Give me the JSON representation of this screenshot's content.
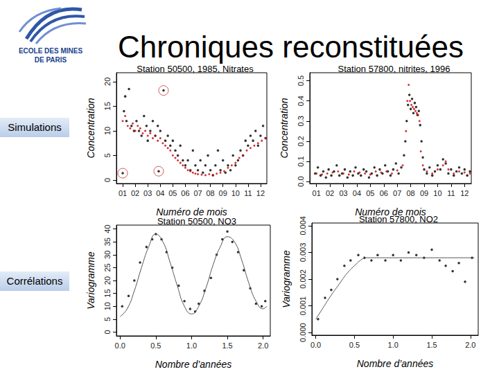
{
  "slide": {
    "logo": [
      "ECOLE DES MINES",
      "DE PARIS"
    ],
    "title": "Chroniques reconstituées",
    "row_labels": [
      "Simulations",
      "Corrélations"
    ]
  },
  "chart_data": [
    {
      "type": "scatter",
      "title": "Station 50500, 1985, Nitrates",
      "x_label": "Numéro de mois",
      "y_label": "Concentration",
      "xlim": [
        0.5,
        12.5
      ],
      "xticks": [
        {
          "value": 1,
          "label": "01"
        },
        {
          "value": 2,
          "label": "02"
        },
        {
          "value": 3,
          "label": "03"
        },
        {
          "value": 4,
          "label": "04"
        },
        {
          "value": 5,
          "label": "05"
        },
        {
          "value": 6,
          "label": "06"
        },
        {
          "value": 7,
          "label": "07"
        },
        {
          "value": 8,
          "label": "08"
        },
        {
          "value": 9,
          "label": "09"
        },
        {
          "value": 10,
          "label": "10"
        },
        {
          "value": 11,
          "label": "11"
        },
        {
          "value": 12,
          "label": "12"
        }
      ],
      "ylim": [
        -0.7,
        21.8
      ],
      "yticks": [
        0,
        5,
        10,
        15,
        20
      ],
      "grid": false,
      "series": [
        {
          "color": "#000000",
          "marker": "circle",
          "x": [
            1.0,
            1.1,
            1.2,
            1.3,
            1.5,
            1.7,
            1.9,
            2.1,
            2.3,
            2.5,
            2.7,
            2.9,
            3.0,
            3.2,
            3.4,
            3.6,
            3.8,
            3.87,
            4.0,
            4.26,
            4.4,
            4.6,
            4.8,
            5.0,
            5.2,
            5.4,
            5.6,
            5.8,
            6.0,
            6.2,
            6.4,
            6.6,
            6.8,
            7.0,
            7.2,
            7.4,
            7.6,
            7.8,
            8.0,
            8.2,
            8.4,
            8.6,
            8.8,
            9.0,
            9.2,
            9.4,
            9.6,
            9.8,
            10.0,
            10.2,
            10.4,
            10.6,
            10.8,
            11.0,
            11.2,
            11.4,
            11.6,
            11.8,
            12.0,
            12.2,
            12.4
          ],
          "values": [
            1.4,
            14,
            17,
            12,
            18.5,
            11,
            10,
            12,
            10,
            9,
            13,
            11,
            8,
            10,
            12,
            9,
            11,
            1.8,
            10,
            18.2,
            8,
            9,
            7,
            8,
            6,
            5,
            7,
            4,
            3,
            4,
            2,
            6,
            3,
            2,
            4,
            1.5,
            3,
            5,
            2,
            1,
            3,
            6,
            2,
            4,
            1.5,
            3,
            2,
            5,
            3,
            4,
            6,
            5,
            8,
            7,
            9,
            8,
            10,
            7,
            9,
            11,
            8.5
          ]
        },
        {
          "color": "#cc0000",
          "marker": "circle",
          "x": [
            1.0,
            1.2,
            1.4,
            1.6,
            1.8,
            2.0,
            2.2,
            2.4,
            2.6,
            2.8,
            3.0,
            3.2,
            3.4,
            3.6,
            3.8,
            4.0,
            4.2,
            4.4,
            4.6,
            4.8,
            5.0,
            5.2,
            5.4,
            5.6,
            5.8,
            6.0,
            6.2,
            6.4,
            6.6,
            6.8,
            7.0,
            7.3,
            7.6,
            7.9,
            8.2,
            8.5,
            8.8,
            9.1,
            9.4,
            9.7,
            10.0,
            10.3,
            10.6,
            10.9,
            11.2,
            11.5,
            11.8,
            12.1,
            12.4
          ],
          "values": [
            12,
            13,
            11,
            10.5,
            11.5,
            10,
            11,
            10.5,
            9.5,
            10,
            9,
            9.5,
            8.5,
            9,
            8,
            8.5,
            7.5,
            7,
            6.5,
            6,
            5,
            4.5,
            4,
            3.5,
            3,
            2.5,
            2,
            1.8,
            1.5,
            1.3,
            1.2,
            1.1,
            1.0,
            1.2,
            1.0,
            1.3,
            1.5,
            1.8,
            2.5,
            3,
            3.5,
            4.5,
            5,
            6,
            6.5,
            7,
            7.5,
            8,
            8.5
          ]
        },
        {
          "color": "#cc3333",
          "marker": "ring",
          "x": [
            1.0,
            3.87,
            4.26
          ],
          "values": [
            1.4,
            1.8,
            18.2
          ]
        }
      ]
    },
    {
      "type": "scatter",
      "title": "Station 57800, nitrites, 1996",
      "x_label": "Numéro de mois",
      "y_label": "Concentration",
      "xlim": [
        0.5,
        12.5
      ],
      "xticks": [
        {
          "value": 1,
          "label": "01"
        },
        {
          "value": 2,
          "label": "02"
        },
        {
          "value": 3,
          "label": "03"
        },
        {
          "value": 4,
          "label": "04"
        },
        {
          "value": 5,
          "label": "05"
        },
        {
          "value": 6,
          "label": "06"
        },
        {
          "value": 7,
          "label": "07"
        },
        {
          "value": 8,
          "label": "08"
        },
        {
          "value": 9,
          "label": "09"
        },
        {
          "value": 10,
          "label": "10"
        },
        {
          "value": 11,
          "label": "11"
        },
        {
          "value": 12,
          "label": "12"
        }
      ],
      "ylim": [
        -0.01,
        0.54
      ],
      "yticks": [
        {
          "value": 0,
          "label": "0.0"
        },
        0.1,
        0.2,
        0.3,
        0.4,
        0.5
      ],
      "grid": false,
      "series": [
        {
          "color": "#000000",
          "marker": "circle",
          "x": [
            0.9,
            1.1,
            1.3,
            1.5,
            1.7,
            1.9,
            2.1,
            2.3,
            2.5,
            2.7,
            2.9,
            3.1,
            3.3,
            3.5,
            3.7,
            3.9,
            4.1,
            4.3,
            4.5,
            4.7,
            4.9,
            5.1,
            5.3,
            5.5,
            5.7,
            5.9,
            6.1,
            6.3,
            6.5,
            6.7,
            6.9,
            7.1,
            7.3,
            7.5,
            7.6,
            7.7,
            7.8,
            7.9,
            8.0,
            8.1,
            8.2,
            8.3,
            8.4,
            8.5,
            8.6,
            8.7,
            8.8,
            8.9,
            9.0,
            9.2,
            9.4,
            9.6,
            9.8,
            10.0,
            10.2,
            10.4,
            10.6,
            10.8,
            11.0,
            11.2,
            11.4,
            11.6,
            11.8,
            12.0,
            12.2,
            12.4
          ],
          "values": [
            0.04,
            0.07,
            0.03,
            0.05,
            0.02,
            0.06,
            0.03,
            0.05,
            0.08,
            0.03,
            0.04,
            0.06,
            0.02,
            0.05,
            0.03,
            0.07,
            0.04,
            0.03,
            0.06,
            0.05,
            0.02,
            0.04,
            0.07,
            0.03,
            0.06,
            0.04,
            0.08,
            0.05,
            0.03,
            0.06,
            0.09,
            0.04,
            0.07,
            0.13,
            0.2,
            0.3,
            0.38,
            0.43,
            0.36,
            0.41,
            0.34,
            0.39,
            0.37,
            0.33,
            0.35,
            0.28,
            0.2,
            0.12,
            0.06,
            0.04,
            0.07,
            0.03,
            0.05,
            0.08,
            0.06,
            0.11,
            0.09,
            0.04,
            0.06,
            0.03,
            0.05,
            0.07,
            0.04,
            0.06,
            0.03,
            0.05
          ]
        },
        {
          "color": "#cc0000",
          "marker": "circle",
          "x": [
            1.0,
            1.4,
            1.8,
            2.2,
            2.6,
            3.0,
            3.4,
            3.8,
            4.2,
            4.6,
            5.0,
            5.4,
            5.8,
            6.2,
            6.6,
            7.0,
            7.4,
            7.65,
            7.75,
            7.85,
            7.95,
            8.05,
            8.15,
            8.25,
            8.35,
            8.45,
            8.55,
            8.65,
            8.75,
            8.9,
            9.2,
            9.6,
            10.0,
            10.4,
            10.6,
            10.8,
            11.2,
            11.6,
            12.0,
            12.4
          ],
          "values": [
            0.04,
            0.035,
            0.04,
            0.045,
            0.05,
            0.04,
            0.035,
            0.05,
            0.045,
            0.04,
            0.035,
            0.05,
            0.045,
            0.05,
            0.04,
            0.055,
            0.08,
            0.25,
            0.4,
            0.48,
            0.4,
            0.38,
            0.37,
            0.36,
            0.35,
            0.34,
            0.33,
            0.3,
            0.15,
            0.08,
            0.05,
            0.04,
            0.06,
            0.08,
            0.1,
            0.06,
            0.04,
            0.05,
            0.045,
            0.04
          ]
        }
      ]
    },
    {
      "type": "scatter",
      "title": "Station 50500, NO3",
      "x_label": "Nombre d’années",
      "y_label": "Variogramme",
      "xlim": [
        -0.05,
        2.1
      ],
      "xticks": [
        {
          "value": 0,
          "label": "0.0"
        },
        0.5,
        {
          "value": 1,
          "label": "1.0"
        },
        1.5,
        {
          "value": 2,
          "label": "2.0"
        }
      ],
      "ylim": [
        -1.5,
        41.5
      ],
      "yticks": [
        0,
        5,
        10,
        15,
        20,
        25,
        30,
        35,
        40
      ],
      "grid": false,
      "series": [
        {
          "color": "#000000",
          "marker": "circle",
          "x": [
            0.03,
            0.12,
            0.2,
            0.28,
            0.37,
            0.45,
            0.5,
            0.58,
            0.65,
            0.73,
            0.82,
            0.9,
            0.98,
            1.05,
            1.1,
            1.18,
            1.27,
            1.35,
            1.43,
            1.5,
            1.57,
            1.65,
            1.73,
            1.82,
            1.9,
            1.98,
            2.03
          ],
          "values": [
            10,
            14,
            20,
            27,
            33,
            36,
            38,
            36,
            31,
            25,
            18,
            12,
            9,
            8,
            11,
            16,
            21,
            30,
            36,
            39,
            35,
            31,
            24,
            17,
            11,
            10,
            12
          ]
        },
        {
          "type": "line",
          "color": "#555555",
          "line_style": "solid",
          "x": [
            0,
            0.1,
            0.2,
            0.3,
            0.4,
            0.5,
            0.6,
            0.7,
            0.8,
            0.9,
            1.0,
            1.1,
            1.2,
            1.3,
            1.4,
            1.5,
            1.6,
            1.7,
            1.8,
            1.9,
            2.0,
            2.05
          ],
          "values": [
            6,
            9,
            16,
            25,
            33,
            38,
            35,
            27,
            18,
            10,
            7,
            10,
            17,
            26,
            33,
            37,
            35,
            28,
            19,
            12,
            9,
            10
          ]
        }
      ]
    },
    {
      "type": "scatter",
      "title": "Station 57800, NO2",
      "x_label": "Nombre d’années",
      "y_label": "Variogramme",
      "xlim": [
        -0.05,
        2.1
      ],
      "xticks": [
        {
          "value": 0,
          "label": "0.0"
        },
        0.5,
        {
          "value": 1,
          "label": "1.0"
        },
        1.5,
        {
          "value": 2,
          "label": "2.0"
        }
      ],
      "ylim": [
        -0.0001,
        0.0041
      ],
      "yticks": [
        {
          "value": 0,
          "label": "0.000"
        },
        0.001,
        0.002,
        0.003,
        0.004
      ],
      "grid": false,
      "series": [
        {
          "color": "#000000",
          "marker": "circle",
          "x": [
            0.03,
            0.12,
            0.2,
            0.28,
            0.37,
            0.45,
            0.55,
            0.63,
            0.72,
            0.8,
            0.9,
            1.0,
            1.1,
            1.2,
            1.3,
            1.4,
            1.5,
            1.6,
            1.68,
            1.77,
            1.85,
            1.93,
            2.02
          ],
          "values": [
            0.0005,
            0.0013,
            0.0016,
            0.002,
            0.0025,
            0.0027,
            0.0029,
            0.0028,
            0.0027,
            0.0029,
            0.0027,
            0.0029,
            0.0027,
            0.003,
            0.0029,
            0.0028,
            0.0031,
            0.0027,
            0.0025,
            0.0023,
            0.0026,
            0.0019,
            0.0028
          ]
        },
        {
          "type": "line",
          "color": "#555555",
          "line_style": "solid",
          "x": [
            0,
            0.1,
            0.2,
            0.3,
            0.4,
            0.5,
            0.6,
            0.65,
            1.0,
            1.5,
            2.05
          ],
          "values": [
            0.0005,
            0.00095,
            0.0014,
            0.0018,
            0.0022,
            0.0025,
            0.00275,
            0.0028,
            0.0028,
            0.0028,
            0.0028
          ]
        }
      ]
    }
  ]
}
